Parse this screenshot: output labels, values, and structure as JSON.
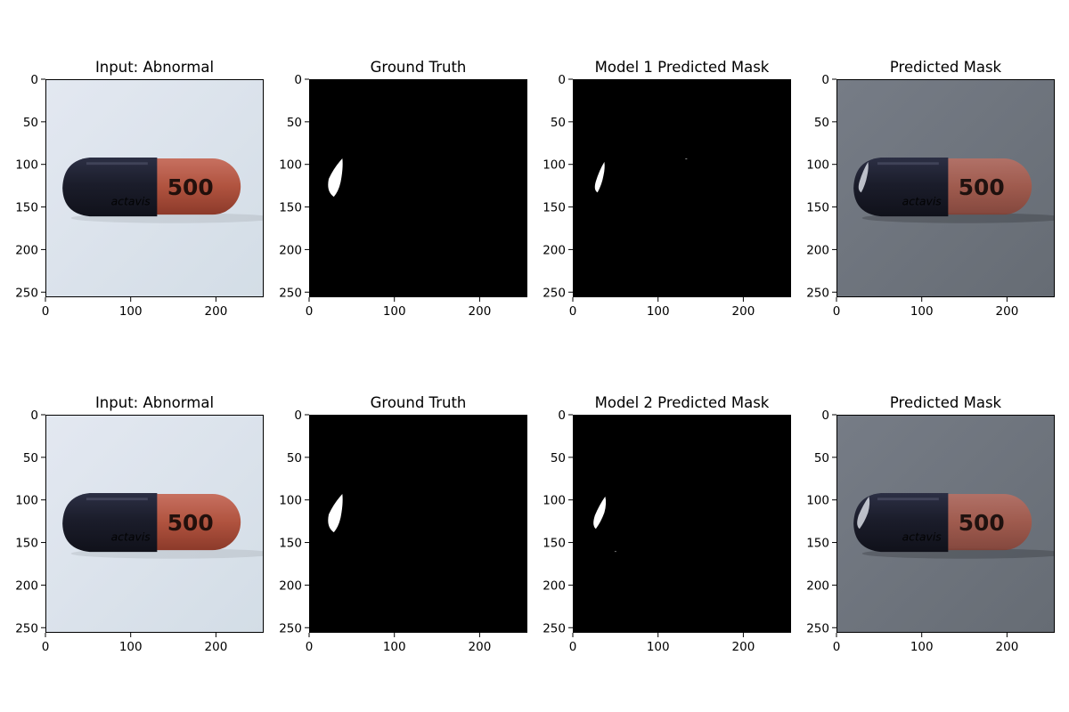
{
  "figure": {
    "rows": [
      {
        "panels": [
          {
            "title": "Input: Abnormal",
            "kind": "input"
          },
          {
            "title": "Ground Truth",
            "kind": "ground_truth"
          },
          {
            "title": "Model 1 Predicted Mask",
            "kind": "model_mask"
          },
          {
            "title": "Predicted Mask",
            "kind": "overlay"
          }
        ]
      },
      {
        "panels": [
          {
            "title": "Input: Abnormal",
            "kind": "input"
          },
          {
            "title": "Ground Truth",
            "kind": "ground_truth"
          },
          {
            "title": "Model 2 Predicted Mask",
            "kind": "model_mask"
          },
          {
            "title": "Predicted Mask",
            "kind": "overlay"
          }
        ]
      }
    ],
    "axes": {
      "x_ticks": [
        0,
        100,
        200
      ],
      "y_ticks": [
        0,
        50,
        100,
        150,
        200,
        250
      ],
      "xlim": [
        0,
        256
      ],
      "ylim": [
        256,
        0
      ]
    },
    "pill": {
      "label": "500",
      "brand": "actavis",
      "dark_color": "#1b1d2b",
      "red_color": "#b0533f"
    },
    "colors": {
      "input_background": "#dfe5ee",
      "overlay_background": "#6f757e",
      "mask_background": "#000000",
      "mask_foreground": "#ffffff"
    }
  }
}
